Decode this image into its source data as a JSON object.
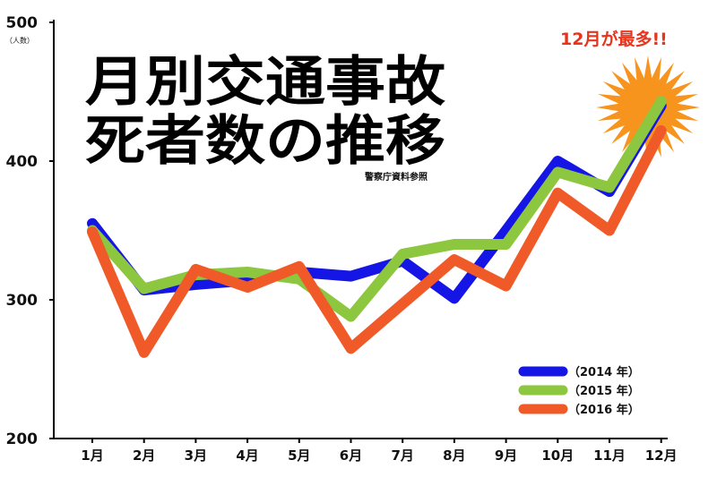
{
  "title_line1": "月別交通事故",
  "title_line2": "死者数の推移",
  "source": "警察庁資料参照",
  "unit_label": "（人数）",
  "callout": "12月が最多!!",
  "colors": {
    "callout_text": "#e8341c",
    "starburst": "#f7941d",
    "axis": "#000000"
  },
  "chart_data": {
    "type": "line",
    "categories": [
      "1月",
      "2月",
      "3月",
      "4月",
      "5月",
      "6月",
      "7月",
      "8月",
      "9月",
      "10月",
      "11月",
      "12月"
    ],
    "ylim": [
      200,
      500
    ],
    "yticks": [
      200,
      300,
      400,
      500
    ],
    "grid": false,
    "legend_position": "bottom-right",
    "series": [
      {
        "name": "（2014 年）",
        "color": "#1515e6",
        "values": [
          355,
          307,
          311,
          314,
          320,
          317,
          328,
          301,
          350,
          400,
          378,
          440
        ]
      },
      {
        "name": "（2015 年）",
        "color": "#8dc63f",
        "values": [
          350,
          308,
          318,
          320,
          315,
          288,
          333,
          340,
          340,
          392,
          381,
          443
        ]
      },
      {
        "name": "（2016 年）",
        "color": "#f05a28",
        "values": [
          349,
          262,
          322,
          309,
          324,
          265,
          297,
          329,
          310,
          377,
          350,
          422
        ]
      }
    ]
  }
}
